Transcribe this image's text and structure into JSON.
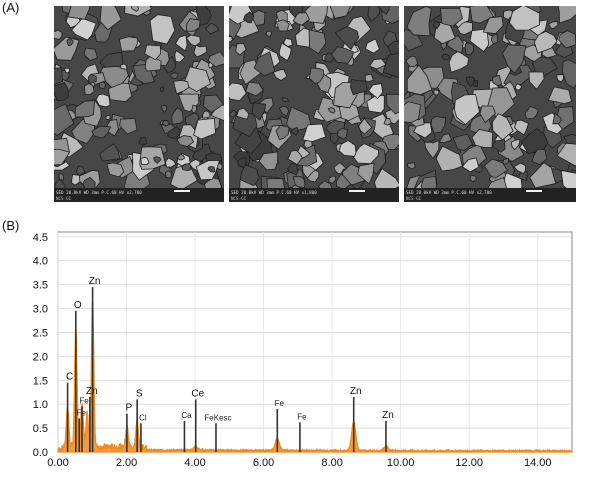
{
  "panels": {
    "a_label": "(A)",
    "b_label": "(B)"
  },
  "sem_images": [
    {
      "info": "SED 20.0kV  WD 3mm  P.C.60  HV   x2,700",
      "scale": "5μm",
      "code": "NCS-GI"
    },
    {
      "info": "SED 20.0kV  WD 3mm  P.C.60  HV   x1,800",
      "scale": "10μm",
      "code": "NCS-GI"
    },
    {
      "info": "SED 20.0kV  WD 3mm  P.C.60  HV   x2,700",
      "scale": "5μm",
      "code": "NCS-GI"
    }
  ],
  "chart_data": {
    "type": "line",
    "title": "",
    "xlabel": "",
    "ylabel": "",
    "xlim": [
      0,
      15
    ],
    "ylim": [
      0,
      4.6
    ],
    "x_ticks": [
      "0.00",
      "2.00",
      "4.00",
      "6.00",
      "8.00",
      "10.00",
      "12.00",
      "14.00"
    ],
    "y_ticks": [
      "0.0",
      "0.5",
      "1.0",
      "1.5",
      "2.0",
      "2.5",
      "3.0",
      "3.5",
      "4.0",
      "4.5"
    ],
    "grid": true,
    "series_color": "#f08a1c",
    "peaks": [
      {
        "x": 0.28,
        "y": 0.85
      },
      {
        "x": 0.52,
        "y": 2.45
      },
      {
        "x": 0.7,
        "y": 0.95
      },
      {
        "x": 0.85,
        "y": 0.7
      },
      {
        "x": 1.01,
        "y": 3.05
      },
      {
        "x": 2.01,
        "y": 0.45
      },
      {
        "x": 2.31,
        "y": 0.55
      },
      {
        "x": 4.02,
        "y": 0.08
      },
      {
        "x": 6.4,
        "y": 0.25
      },
      {
        "x": 8.63,
        "y": 0.6
      },
      {
        "x": 9.57,
        "y": 0.1
      }
    ],
    "line_markers": [
      {
        "x": 0.28,
        "y": 1.45,
        "label": "C"
      },
      {
        "x": 0.52,
        "y": 2.95,
        "label": "O"
      },
      {
        "x": 0.62,
        "y": 0.7,
        "label": "Fe"
      },
      {
        "x": 0.7,
        "y": 0.95,
        "label": "Fe"
      },
      {
        "x": 0.93,
        "y": 1.15,
        "label": "Zn"
      },
      {
        "x": 1.01,
        "y": 3.45,
        "label": "Zn"
      },
      {
        "x": 2.01,
        "y": 0.8,
        "label": "P"
      },
      {
        "x": 2.31,
        "y": 1.1,
        "label": "S"
      },
      {
        "x": 2.42,
        "y": 0.6,
        "label": "Cl"
      },
      {
        "x": 3.69,
        "y": 0.65,
        "label": "Ca"
      },
      {
        "x": 4.02,
        "y": 1.1,
        "label": "Ce"
      },
      {
        "x": 4.61,
        "y": 0.6,
        "label": "FeKesc"
      },
      {
        "x": 6.4,
        "y": 0.9,
        "label": "Fe"
      },
      {
        "x": 7.06,
        "y": 0.62,
        "label": "Fe"
      },
      {
        "x": 8.63,
        "y": 1.15,
        "label": "Zn"
      },
      {
        "x": 9.57,
        "y": 0.65,
        "label": "Zn"
      }
    ]
  }
}
